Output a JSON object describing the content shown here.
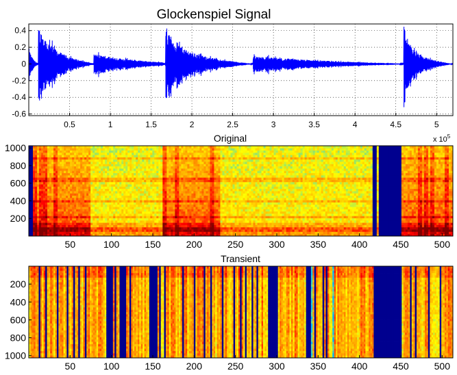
{
  "chart_data": [
    {
      "type": "line",
      "title": "Glockenspiel Signal",
      "xlabel": "",
      "ylabel": "",
      "xlim": [
        0,
        520000
      ],
      "ylim": [
        -0.62,
        0.48
      ],
      "exponent_label": "x 10",
      "exponent_power": "5",
      "x_ticks": [
        0.5,
        1,
        1.5,
        2,
        2.5,
        3,
        3.5,
        4,
        4.5,
        5
      ],
      "x_tick_labels": [
        "0.5",
        "1",
        "1.5",
        "2",
        "2.5",
        "3",
        "3.5",
        "4",
        "4.5",
        "5"
      ],
      "y_ticks": [
        0.4,
        0.2,
        0,
        -0.2,
        -0.4,
        -0.6
      ],
      "y_tick_labels": [
        "0.4",
        "0.2",
        "0",
        "-0.2",
        "-0.4",
        "-0.6"
      ],
      "grid": true,
      "line_color": "#0000ff",
      "segments": [
        {
          "start": 0.0,
          "end": 0.12,
          "peak": 0.2,
          "decay": 0.3
        },
        {
          "start": 0.12,
          "end": 0.8,
          "peak": 0.45,
          "decay": 0.25
        },
        {
          "start": 0.8,
          "end": 1.68,
          "peak": 0.12,
          "decay": 0.6
        },
        {
          "start": 1.68,
          "end": 2.75,
          "peak": 0.42,
          "decay": 0.2
        },
        {
          "start": 2.75,
          "end": 4.45,
          "peak": 0.1,
          "decay": 0.5
        },
        {
          "start": 4.45,
          "end": 4.6,
          "peak": 0.01,
          "decay": 1.0
        },
        {
          "start": 4.6,
          "end": 5.2,
          "peak": 0.45,
          "decay": 0.15
        }
      ]
    },
    {
      "type": "heatmap",
      "title": "Original",
      "xlim": [
        0,
        513
      ],
      "ylim": [
        0,
        1025
      ],
      "y_direction": "normal",
      "x_ticks": [
        50,
        100,
        150,
        200,
        250,
        300,
        350,
        400,
        450,
        500
      ],
      "y_ticks": [
        200,
        400,
        600,
        800,
        1000
      ],
      "colormap": [
        "#00008f",
        "#00bfff",
        "#ffff00",
        "#ff8000",
        "#ff0000",
        "#800000"
      ],
      "blank_columns": [
        [
          0,
          4
        ],
        [
          417,
          421
        ],
        [
          423,
          451
        ]
      ],
      "active_regions": [
        [
          4,
          75
        ],
        [
          163,
          232
        ],
        [
          451,
          513
        ]
      ],
      "harmonic_rows": [
        60,
        110,
        200,
        380,
        630,
        870
      ]
    },
    {
      "type": "heatmap",
      "title": "Transient",
      "xlim": [
        0,
        513
      ],
      "ylim": [
        0,
        1025
      ],
      "y_direction": "reverse",
      "x_ticks": [
        50,
        100,
        150,
        200,
        250,
        300,
        350,
        400,
        450,
        500
      ],
      "y_ticks": [
        200,
        400,
        600,
        800,
        1000
      ],
      "colormap": [
        "#00008f",
        "#00bfff",
        "#ffff00",
        "#ff8000",
        "#ff0000",
        "#800000"
      ],
      "blank_columns": [
        [
          12,
          14
        ],
        [
          19,
          21
        ],
        [
          34,
          36
        ],
        [
          46,
          48
        ],
        [
          53,
          55
        ],
        [
          60,
          62
        ],
        [
          67,
          69
        ],
        [
          93,
          101
        ],
        [
          104,
          106
        ],
        [
          109,
          117
        ],
        [
          121,
          123
        ],
        [
          146,
          156
        ],
        [
          158,
          160
        ],
        [
          164,
          166
        ],
        [
          186,
          188
        ],
        [
          200,
          202
        ],
        [
          212,
          214
        ],
        [
          219,
          221
        ],
        [
          234,
          236
        ],
        [
          248,
          250
        ],
        [
          255,
          257
        ],
        [
          262,
          264
        ],
        [
          269,
          271
        ],
        [
          276,
          278
        ],
        [
          290,
          302
        ],
        [
          335,
          341
        ],
        [
          345,
          347
        ],
        [
          355,
          357
        ],
        [
          360,
          362
        ],
        [
          418,
          451
        ],
        [
          462,
          464
        ],
        [
          468,
          470
        ],
        [
          483,
          485
        ],
        [
          497,
          499
        ]
      ],
      "cyan_columns": [
        [
          341,
          343
        ],
        [
          367,
          369
        ]
      ]
    }
  ]
}
